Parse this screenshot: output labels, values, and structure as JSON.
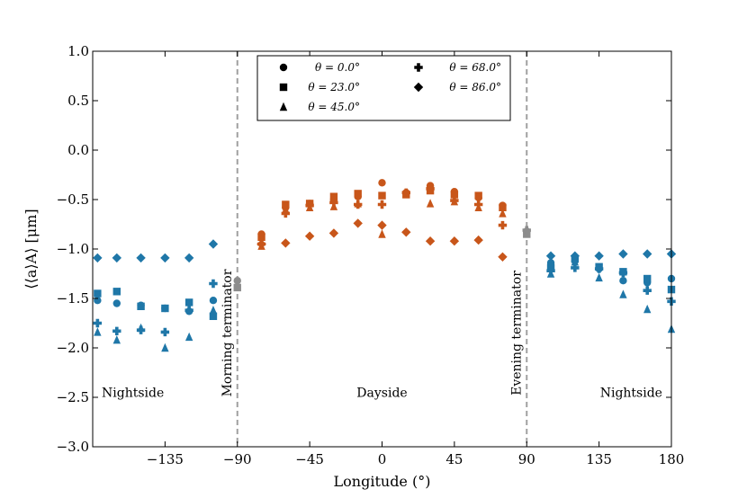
{
  "chart_data": {
    "type": "scatter",
    "xlabel": "Longitude (°)",
    "ylabel": "⟨⟨a⟩A⟩ [μm]",
    "xlim": [
      -180,
      180
    ],
    "ylim": [
      -3.0,
      1.0
    ],
    "x_ticks": [
      -135,
      -90,
      -45,
      0,
      45,
      90,
      135,
      180
    ],
    "x_tick_labels": [
      "−135",
      "−90",
      "−45",
      "0",
      "45",
      "90",
      "135",
      "180"
    ],
    "y_ticks": [
      1.0,
      0.5,
      0.0,
      -0.5,
      -1.0,
      -1.5,
      -2.0,
      -2.5,
      -3.0
    ],
    "y_tick_labels": [
      "1.0",
      "0.5",
      "0.0",
      "−0.5",
      "−1.0",
      "−1.5",
      "−2.0",
      "−2.5",
      "−3.0"
    ],
    "colors": {
      "nightside": "#1f77a8",
      "dayside": "#c8561a",
      "terminator": "#8c8c8c"
    },
    "terminators": [
      {
        "x": -90,
        "label": "Morning terminator"
      },
      {
        "x": 90,
        "label": "Evening terminator"
      }
    ],
    "regions": [
      {
        "label": "Nightside",
        "x": -155,
        "y": -2.45
      },
      {
        "label": "Dayside",
        "x": 0,
        "y": -2.45
      },
      {
        "label": "Nightside",
        "x": 155,
        "y": -2.45
      }
    ],
    "legend_position": "top-center",
    "legend_entries": [
      {
        "marker": "circle",
        "label": "θ = 0.0°"
      },
      {
        "marker": "square",
        "label": "θ = 23.0°"
      },
      {
        "marker": "triangle",
        "label": "θ = 45.0°"
      },
      {
        "marker": "plus",
        "label": "θ = 68.0°"
      },
      {
        "marker": "diamond",
        "label": "θ = 86.0°"
      }
    ],
    "series": [
      {
        "name": "θ = 0.0°",
        "marker": "circle",
        "points": [
          [
            -177,
            -1.52
          ],
          [
            -165,
            -1.55
          ],
          [
            -150,
            -1.57
          ],
          [
            -135,
            -1.6
          ],
          [
            -120,
            -1.63
          ],
          [
            -105,
            -1.52
          ],
          [
            -90,
            -1.32
          ],
          [
            -75,
            -0.85
          ],
          [
            -60,
            -0.58
          ],
          [
            -45,
            -0.54
          ],
          [
            -30,
            -0.5
          ],
          [
            -15,
            -0.47
          ],
          [
            0,
            -0.33
          ],
          [
            15,
            -0.43
          ],
          [
            30,
            -0.36
          ],
          [
            45,
            -0.42
          ],
          [
            60,
            -0.48
          ],
          [
            75,
            -0.56
          ],
          [
            90,
            -0.82
          ],
          [
            105,
            -1.14
          ],
          [
            120,
            -1.12
          ],
          [
            135,
            -1.2
          ],
          [
            150,
            -1.32
          ],
          [
            165,
            -1.34
          ],
          [
            180,
            -1.3
          ]
        ]
      },
      {
        "name": "θ = 23.0°",
        "marker": "square",
        "points": [
          [
            -177,
            -1.45
          ],
          [
            -165,
            -1.43
          ],
          [
            -150,
            -1.58
          ],
          [
            -135,
            -1.6
          ],
          [
            -120,
            -1.54
          ],
          [
            -105,
            -1.68
          ],
          [
            -90,
            -1.39
          ],
          [
            -75,
            -0.88
          ],
          [
            -60,
            -0.55
          ],
          [
            -45,
            -0.54
          ],
          [
            -30,
            -0.47
          ],
          [
            -15,
            -0.44
          ],
          [
            0,
            -0.46
          ],
          [
            15,
            -0.45
          ],
          [
            30,
            -0.41
          ],
          [
            45,
            -0.45
          ],
          [
            60,
            -0.46
          ],
          [
            75,
            -0.58
          ],
          [
            90,
            -0.85
          ],
          [
            105,
            -1.19
          ],
          [
            120,
            -1.1
          ],
          [
            135,
            -1.18
          ],
          [
            150,
            -1.23
          ],
          [
            165,
            -1.3
          ],
          [
            180,
            -1.41
          ]
        ]
      },
      {
        "name": "θ = 45.0°",
        "marker": "triangle",
        "points": [
          [
            -177,
            -1.84
          ],
          [
            -165,
            -1.92
          ],
          [
            -150,
            -1.8
          ],
          [
            -135,
            -2.0
          ],
          [
            -120,
            -1.89
          ],
          [
            -105,
            -1.62
          ],
          [
            -75,
            -0.97
          ],
          [
            -60,
            -0.6
          ],
          [
            -45,
            -0.58
          ],
          [
            -30,
            -0.57
          ],
          [
            -15,
            -0.54
          ],
          [
            0,
            -0.85
          ],
          [
            15,
            -0.44
          ],
          [
            30,
            -0.54
          ],
          [
            45,
            -0.52
          ],
          [
            60,
            -0.58
          ],
          [
            75,
            -0.64
          ],
          [
            90,
            -0.84
          ],
          [
            105,
            -1.25
          ],
          [
            120,
            -1.13
          ],
          [
            135,
            -1.29
          ],
          [
            150,
            -1.46
          ],
          [
            165,
            -1.61
          ],
          [
            180,
            -1.81
          ]
        ]
      },
      {
        "name": "θ = 68.0°",
        "marker": "plus",
        "points": [
          [
            -177,
            -1.75
          ],
          [
            -165,
            -1.83
          ],
          [
            -150,
            -1.82
          ],
          [
            -135,
            -1.84
          ],
          [
            -120,
            -1.62
          ],
          [
            -105,
            -1.35
          ],
          [
            -75,
            -0.95
          ],
          [
            -60,
            -0.64
          ],
          [
            -45,
            -0.56
          ],
          [
            -30,
            -0.53
          ],
          [
            -15,
            -0.55
          ],
          [
            0,
            -0.55
          ],
          [
            15,
            -0.43
          ],
          [
            30,
            -0.39
          ],
          [
            45,
            -0.51
          ],
          [
            60,
            -0.55
          ],
          [
            75,
            -0.76
          ],
          [
            90,
            -0.81
          ],
          [
            105,
            -1.22
          ],
          [
            120,
            -1.19
          ],
          [
            135,
            -1.2
          ],
          [
            150,
            -1.24
          ],
          [
            165,
            -1.42
          ],
          [
            180,
            -1.53
          ]
        ]
      },
      {
        "name": "θ = 86.0°",
        "marker": "diamond",
        "points": [
          [
            -177,
            -1.09
          ],
          [
            -165,
            -1.09
          ],
          [
            -150,
            -1.09
          ],
          [
            -135,
            -1.09
          ],
          [
            -120,
            -1.09
          ],
          [
            -105,
            -0.95
          ],
          [
            -75,
            -0.95
          ],
          [
            -60,
            -0.94
          ],
          [
            -45,
            -0.87
          ],
          [
            -30,
            -0.84
          ],
          [
            -15,
            -0.74
          ],
          [
            0,
            -0.76
          ],
          [
            15,
            -0.83
          ],
          [
            30,
            -0.92
          ],
          [
            45,
            -0.92
          ],
          [
            60,
            -0.91
          ],
          [
            75,
            -1.08
          ],
          [
            105,
            -1.07
          ],
          [
            120,
            -1.07
          ],
          [
            135,
            -1.07
          ],
          [
            150,
            -1.05
          ],
          [
            165,
            -1.05
          ],
          [
            180,
            -1.05
          ]
        ]
      }
    ]
  }
}
